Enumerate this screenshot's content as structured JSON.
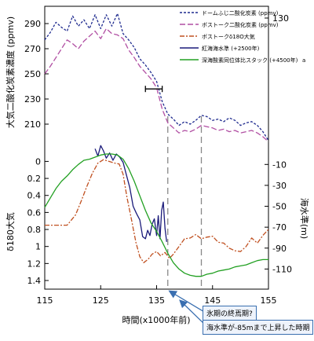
{
  "chart_data": {
    "type": "line",
    "xlabel": "時間(x1000年前)",
    "x_ticks": [
      "115",
      "125",
      "135",
      "145",
      "155"
    ],
    "xlim": [
      115,
      155
    ],
    "co2_axis": {
      "label": "大気二酸化炭素濃度 (ppmv)",
      "ticks": [
        "290",
        "270",
        "250",
        "230",
        "210"
      ],
      "range": [
        190,
        300
      ]
    },
    "d18o_axis": {
      "label": "δ180大気",
      "ticks": [
        "0",
        "0.2",
        "0.4",
        "0.6",
        "0.8",
        "1",
        "1.2",
        "1.4"
      ],
      "range": [
        -0.05,
        1.4
      ]
    },
    "sea_axis": {
      "label": "海水準(m)",
      "ticks": [
        "-10",
        "-30",
        "-50",
        "-70",
        "-90",
        "-110",
        "130"
      ],
      "range": [
        -130,
        6
      ]
    },
    "series": [
      {
        "name": "ドームふじ二酸化炭素 (ppmv)",
        "axis": "co2",
        "color": "#1f2b8f",
        "dash": "3,2",
        "x": [
          115,
          116,
          117,
          118,
          119,
          120,
          121,
          122,
          123,
          124,
          125,
          126,
          127,
          128,
          129,
          130,
          131,
          132,
          133,
          134,
          135,
          136,
          137,
          138,
          139,
          140,
          141,
          142,
          143,
          144,
          145,
          146,
          147,
          148,
          149,
          150,
          151,
          152,
          153,
          154,
          155
        ],
        "y": [
          277,
          283,
          291,
          287,
          284,
          296,
          288,
          293,
          286,
          297,
          286,
          297,
          288,
          298,
          282,
          277,
          271,
          262,
          257,
          251,
          244,
          228,
          218,
          214,
          209,
          212,
          210,
          213,
          217,
          216,
          213,
          214,
          212,
          215,
          213,
          209,
          211,
          212,
          209,
          204,
          197
        ]
      },
      {
        "name": "ボストーク二酸化炭素 (ppmv)",
        "axis": "co2",
        "color": "#b14fa3",
        "dash": "7,3",
        "x": [
          115,
          116,
          117,
          118,
          119,
          120,
          121,
          122,
          123,
          124,
          125,
          126,
          127,
          128,
          129,
          130,
          131,
          132,
          133,
          134,
          135,
          136,
          137,
          138,
          139,
          140,
          141,
          142,
          143,
          144,
          145,
          146,
          147,
          148,
          149,
          150,
          151,
          152,
          153,
          154,
          155
        ],
        "y": [
          250,
          256,
          263,
          270,
          277,
          274,
          270,
          276,
          280,
          284,
          278,
          286,
          282,
          281,
          278,
          269,
          263,
          256,
          251,
          246,
          239,
          222,
          211,
          207,
          203,
          205,
          204,
          206,
          209,
          208,
          207,
          205,
          206,
          204,
          205,
          203,
          204,
          205,
          203,
          200,
          196
        ]
      },
      {
        "name": "ボストークδ18O大気",
        "axis": "d18o",
        "color": "#c05020",
        "dash": "6,2,2,2",
        "x": [
          115,
          117,
          119,
          120.5,
          121.5,
          122.5,
          123.5,
          124.5,
          125.5,
          126.5,
          127.5,
          128.3,
          129,
          129.7,
          130.5,
          131.3,
          132,
          132.7,
          133.5,
          134.2,
          135,
          135.7,
          136.5,
          137.3,
          138,
          139,
          140,
          141,
          142,
          143,
          144,
          145,
          146,
          147,
          148,
          149,
          150,
          151,
          152,
          153,
          154,
          155
        ],
        "y": [
          0.75,
          0.75,
          0.75,
          0.63,
          0.47,
          0.3,
          0.14,
          0.02,
          -0.02,
          0.0,
          0.02,
          0.03,
          0.15,
          0.42,
          0.68,
          0.95,
          1.12,
          1.19,
          1.15,
          1.09,
          1.06,
          1.11,
          1.07,
          1.14,
          1.09,
          1.0,
          0.91,
          0.9,
          0.86,
          0.91,
          0.89,
          0.88,
          0.95,
          0.96,
          1.02,
          1.05,
          1.06,
          1.0,
          0.9,
          0.96,
          0.87,
          0.8
        ]
      },
      {
        "name": "紅海海水準 (+2500年)",
        "axis": "sea",
        "color": "#1a1a7a",
        "dash": "",
        "x": [
          124,
          124.5,
          125,
          125.5,
          126,
          126.6,
          127.2,
          127.8,
          128.4,
          129,
          129.6,
          130.2,
          130.8,
          131.4,
          132,
          132.5,
          133,
          133.4,
          133.8,
          134.2,
          134.6,
          135,
          135.3,
          135.6,
          135.9,
          136.2,
          136.5,
          136.8
        ],
        "y": [
          5,
          -2,
          8,
          3,
          -4,
          1,
          -6,
          0,
          -3,
          -8,
          -20,
          -32,
          -50,
          -57,
          -63,
          -79,
          -81,
          -73,
          -78,
          -67,
          -62,
          -78,
          -59,
          -81,
          -54,
          -46,
          -71,
          -84
        ]
      },
      {
        "name": "深海酸素同位体比スタック (+4500年)",
        "axis": "sea",
        "color": "#22a022",
        "dash": "",
        "x": [
          115,
          116,
          117,
          118,
          119,
          120,
          121,
          122,
          123,
          124,
          125,
          126,
          127,
          128,
          129,
          130,
          131,
          132,
          133,
          134,
          135,
          136,
          137,
          138,
          139,
          140,
          141,
          142,
          143,
          144,
          145,
          146,
          147,
          148,
          149,
          150,
          151,
          152,
          153,
          154,
          155
        ],
        "y": [
          -51,
          -42,
          -33,
          -26,
          -21,
          -15,
          -10,
          -6,
          -5,
          -3,
          -1,
          0,
          0,
          -1,
          -5,
          -14,
          -26,
          -40,
          -54,
          -66,
          -74,
          -84,
          -95,
          -104,
          -110,
          -114,
          -116,
          -117,
          -117,
          -115,
          -114,
          -112,
          -111,
          -110,
          -108,
          -107,
          -106,
          -104,
          -102,
          -101,
          -101
        ]
      }
    ],
    "legend_suffix": "a",
    "vlines_x": [
      137,
      143
    ],
    "error_bar": {
      "x_start": 133,
      "x_end": 136,
      "y": 238
    },
    "callouts": [
      "氷期の終焉期?",
      "海水準が-85mまで上昇した時期"
    ]
  }
}
